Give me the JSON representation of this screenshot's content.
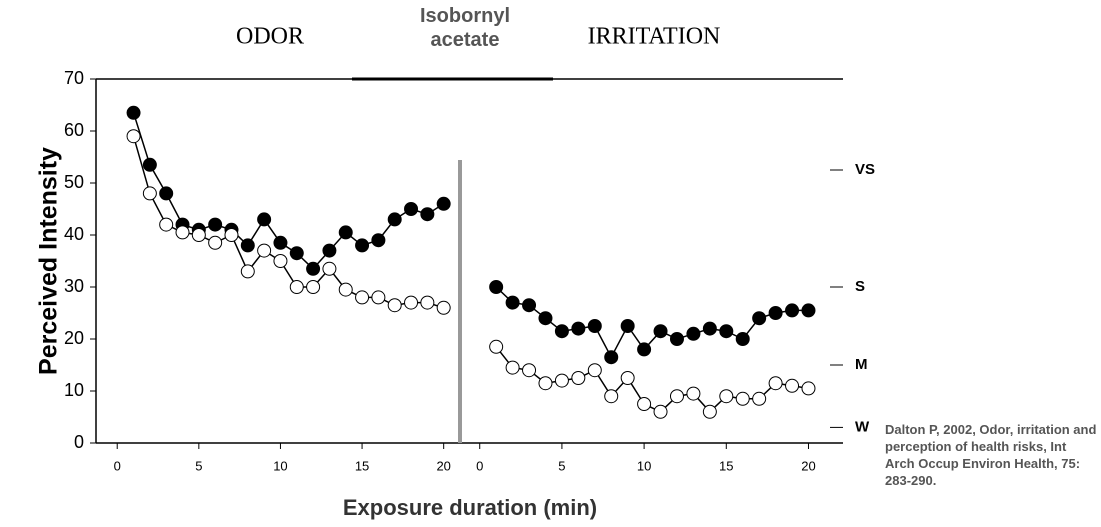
{
  "chart_data": {
    "type": "line",
    "title": "Isobornyl acetate",
    "xlabel": "Exposure duration (min)",
    "ylabel": "Perceived Intensity",
    "annotation": "Dalton P, 2002, Odor, irritation and perception of health risks, Int Arch Occup Environ Health, 75: 283-290.",
    "ylim": [
      0,
      70
    ],
    "yticks": [
      0,
      10,
      20,
      30,
      40,
      50,
      60,
      70
    ],
    "y2lim": [
      0,
      70
    ],
    "y2ticks": [
      {
        "value": 3,
        "label": "W"
      },
      {
        "value": 15,
        "label": "M"
      },
      {
        "value": 30,
        "label": "S"
      },
      {
        "value": 52.5,
        "label": "VS"
      }
    ],
    "panels": [
      {
        "title": "ODOR",
        "xlim": [
          -1.3,
          21
        ],
        "xticks": [
          0,
          5,
          10,
          15,
          20
        ],
        "x": [
          1,
          2,
          3,
          4,
          5,
          6,
          7,
          8,
          9,
          10,
          11,
          12,
          13,
          14,
          15,
          16,
          17,
          18,
          19,
          20
        ],
        "series": [
          {
            "color": "#000000",
            "values": [
              63.5,
              53.5,
              48,
              42,
              41,
              42,
              41,
              38,
              43,
              38.5,
              36.5,
              33.5,
              37,
              40.5,
              38,
              39,
              43,
              45,
              44,
              46
            ]
          },
          {
            "color": "#ffffff",
            "values": [
              59,
              48,
              42,
              40.5,
              40,
              38.5,
              40,
              33,
              37,
              35,
              30,
              30,
              33.5,
              29.5,
              28,
              28,
              26.5,
              27,
              27,
              26
            ]
          }
        ]
      },
      {
        "title": "IRRITATION",
        "xlim": [
          -1.2,
          22.1
        ],
        "xticks": [
          0,
          5,
          10,
          15,
          20
        ],
        "x": [
          1,
          2,
          3,
          4,
          5,
          6,
          7,
          8,
          9,
          10,
          11,
          12,
          13,
          14,
          15,
          16,
          17,
          18,
          19,
          20
        ],
        "series": [
          {
            "color": "#000000",
            "values": [
              30,
              27,
              26.5,
              24,
              21.5,
              22,
              22.5,
              16.5,
              22.5,
              18,
              21.5,
              20,
              21,
              22,
              21.5,
              20,
              24,
              25,
              25.5,
              25.5
            ]
          },
          {
            "color": "#ffffff",
            "values": [
              18.5,
              14.5,
              14,
              11.5,
              12,
              12.5,
              14,
              9,
              12.5,
              7.5,
              6,
              9,
              9.5,
              6,
              9,
              8.5,
              8.5,
              11.5,
              11,
              10.5
            ]
          }
        ]
      }
    ]
  }
}
